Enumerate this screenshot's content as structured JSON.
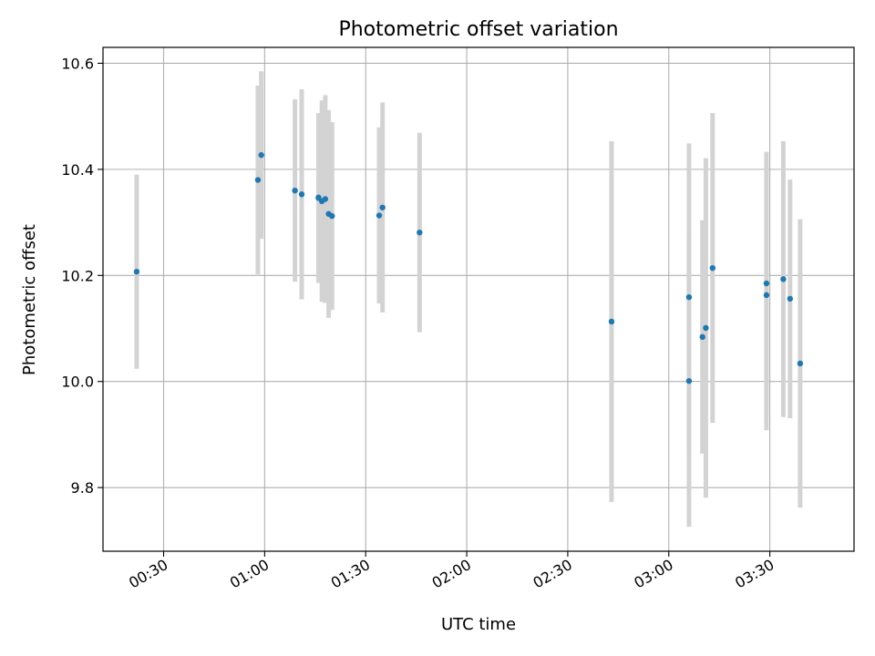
{
  "chart_data": {
    "type": "scatter",
    "title": "Photometric offset variation",
    "xlabel": "UTC time",
    "ylabel": "Photometric offset",
    "x_axis_type": "time",
    "xlim": [
      "00:12",
      "03:55"
    ],
    "ylim": [
      9.68,
      10.63
    ],
    "x_ticks": [
      "00:30",
      "01:00",
      "01:30",
      "02:00",
      "02:30",
      "03:00",
      "03:30"
    ],
    "y_ticks": [
      "9.8",
      "10.0",
      "10.2",
      "10.4",
      "10.6"
    ],
    "grid": true,
    "point_color": "#1f77b4",
    "errorbar_color": "#d3d3d3",
    "points": [
      {
        "time": "00:22",
        "y": 10.207,
        "err": 0.183
      },
      {
        "time": "00:58",
        "y": 10.38,
        "err": 0.178
      },
      {
        "time": "00:59",
        "y": 10.427,
        "err": 0.158
      },
      {
        "time": "01:09",
        "y": 10.36,
        "err": 0.172
      },
      {
        "time": "01:11",
        "y": 10.353,
        "err": 0.198
      },
      {
        "time": "01:16",
        "y": 10.347,
        "err": 0.148
      },
      {
        "time": "01:16",
        "y": 10.346,
        "err": 0.16
      },
      {
        "time": "01:17",
        "y": 10.34,
        "err": 0.19
      },
      {
        "time": "01:18",
        "y": 10.344,
        "err": 0.196
      },
      {
        "time": "01:19",
        "y": 10.316,
        "err": 0.196
      },
      {
        "time": "01:20",
        "y": 10.312,
        "err": 0.177
      },
      {
        "time": "01:34",
        "y": 10.313,
        "err": 0.166
      },
      {
        "time": "01:35",
        "y": 10.328,
        "err": 0.198
      },
      {
        "time": "01:46",
        "y": 10.281,
        "err": 0.188
      },
      {
        "time": "02:43",
        "y": 10.113,
        "err": 0.34
      },
      {
        "time": "03:06",
        "y": 10.001,
        "err": 0.275
      },
      {
        "time": "03:06",
        "y": 10.159,
        "err": 0.29
      },
      {
        "time": "03:10",
        "y": 10.084,
        "err": 0.22
      },
      {
        "time": "03:11",
        "y": 10.101,
        "err": 0.32
      },
      {
        "time": "03:13",
        "y": 10.214,
        "err": 0.292
      },
      {
        "time": "03:29",
        "y": 10.185,
        "err": 0.248
      },
      {
        "time": "03:29",
        "y": 10.163,
        "err": 0.255
      },
      {
        "time": "03:34",
        "y": 10.193,
        "err": 0.26
      },
      {
        "time": "03:36",
        "y": 10.156,
        "err": 0.225
      },
      {
        "time": "03:39",
        "y": 10.034,
        "err": 0.272
      }
    ]
  }
}
